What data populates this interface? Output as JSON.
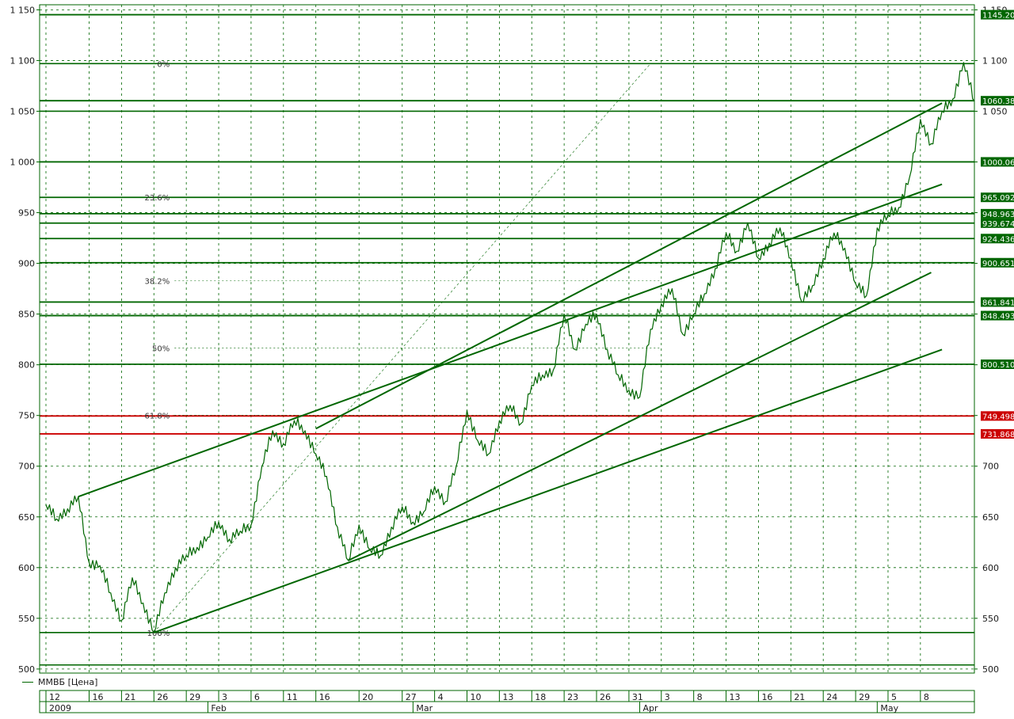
{
  "chart_data": {
    "type": "line",
    "series": [
      {
        "name": "ММВБ [Цена]",
        "color": "#006600",
        "points": [
          [
            "2009-01-12",
            662
          ],
          [
            "2009-01-13",
            648
          ],
          [
            "2009-01-14",
            658
          ],
          [
            "2009-01-15",
            670
          ],
          [
            "2009-01-16",
            605
          ],
          [
            "2009-01-19",
            602
          ],
          [
            "2009-01-20",
            575
          ],
          [
            "2009-01-21",
            548
          ],
          [
            "2009-01-22",
            590
          ],
          [
            "2009-01-23",
            565
          ],
          [
            "2009-01-26",
            536
          ],
          [
            "2009-01-27",
            575
          ],
          [
            "2009-01-28",
            600
          ],
          [
            "2009-01-29",
            612
          ],
          [
            "2009-01-30",
            620
          ],
          [
            "2009-02-02",
            630
          ],
          [
            "2009-02-03",
            645
          ],
          [
            "2009-02-04",
            628
          ],
          [
            "2009-02-05",
            636
          ],
          [
            "2009-02-06",
            642
          ],
          [
            "2009-02-09",
            700
          ],
          [
            "2009-02-10",
            735
          ],
          [
            "2009-02-11",
            722
          ],
          [
            "2009-02-12",
            745
          ],
          [
            "2009-02-13",
            735
          ],
          [
            "2009-02-16",
            712
          ],
          [
            "2009-02-17",
            690
          ],
          [
            "2009-02-18",
            640
          ],
          [
            "2009-02-19",
            607
          ],
          [
            "2009-02-20",
            642
          ],
          [
            "2009-02-24",
            618
          ],
          [
            "2009-02-25",
            612
          ],
          [
            "2009-02-26",
            640
          ],
          [
            "2009-02-27",
            660
          ],
          [
            "2009-03-02",
            645
          ],
          [
            "2009-03-03",
            655
          ],
          [
            "2009-03-04",
            680
          ],
          [
            "2009-03-05",
            665
          ],
          [
            "2009-03-06",
            700
          ],
          [
            "2009-03-10",
            755
          ],
          [
            "2009-03-11",
            725
          ],
          [
            "2009-03-12",
            712
          ],
          [
            "2009-03-13",
            745
          ],
          [
            "2009-03-16",
            760
          ],
          [
            "2009-03-17",
            742
          ],
          [
            "2009-03-18",
            780
          ],
          [
            "2009-03-19",
            790
          ],
          [
            "2009-03-20",
            795
          ],
          [
            "2009-03-23",
            850
          ],
          [
            "2009-03-24",
            815
          ],
          [
            "2009-03-25",
            840
          ],
          [
            "2009-03-26",
            850
          ],
          [
            "2009-03-27",
            815
          ],
          [
            "2009-03-30",
            790
          ],
          [
            "2009-03-31",
            775
          ],
          [
            "2009-04-01",
            768
          ],
          [
            "2009-04-02",
            835
          ],
          [
            "2009-04-03",
            860
          ],
          [
            "2009-04-06",
            875
          ],
          [
            "2009-04-07",
            830
          ],
          [
            "2009-04-08",
            850
          ],
          [
            "2009-04-09",
            870
          ],
          [
            "2009-04-10",
            895
          ],
          [
            "2009-04-13",
            930
          ],
          [
            "2009-04-14",
            912
          ],
          [
            "2009-04-15",
            940
          ],
          [
            "2009-04-16",
            905
          ],
          [
            "2009-04-17",
            920
          ],
          [
            "2009-04-20",
            935
          ],
          [
            "2009-04-21",
            905
          ],
          [
            "2009-04-22",
            862
          ],
          [
            "2009-04-23",
            878
          ],
          [
            "2009-04-24",
            905
          ],
          [
            "2009-04-27",
            930
          ],
          [
            "2009-04-28",
            915
          ],
          [
            "2009-04-29",
            880
          ],
          [
            "2009-04-30",
            868
          ],
          [
            "2009-05-04",
            935
          ],
          [
            "2009-05-05",
            948
          ],
          [
            "2009-05-06",
            955
          ],
          [
            "2009-05-07",
            985
          ],
          [
            "2009-05-08",
            1042
          ],
          [
            "2009-05-12",
            1018
          ],
          [
            "2009-05-13",
            1050
          ],
          [
            "2009-05-14",
            1062
          ],
          [
            "2009-05-15",
            1098
          ],
          [
            "2009-05-18",
            1060
          ]
        ]
      }
    ],
    "y_ticks": [
      "1 150",
      "1 100",
      "1 050",
      "1 000",
      "950",
      "900",
      "850",
      "800",
      "750",
      "700",
      "650",
      "600",
      "550",
      "500"
    ],
    "y_ticks_right": [
      "1 150",
      "1 100",
      "1 050",
      "1 000",
      "950",
      "900",
      "850",
      "800",
      "750",
      "700",
      "650",
      "600",
      "550",
      "500"
    ],
    "y_tick_values": [
      1150,
      1100,
      1050,
      1000,
      950,
      900,
      850,
      800,
      750,
      700,
      650,
      600,
      550,
      500
    ],
    "ylim": [
      496,
      1155
    ],
    "x_ticks": [
      {
        "label": "12",
        "date": "2009-01-12"
      },
      {
        "label": "16",
        "date": "2009-01-16"
      },
      {
        "label": "21",
        "date": "2009-01-21"
      },
      {
        "label": "26",
        "date": "2009-01-26"
      },
      {
        "label": "29",
        "date": "2009-01-29"
      },
      {
        "label": "3",
        "date": "2009-02-03"
      },
      {
        "label": "6",
        "date": "2009-02-06"
      },
      {
        "label": "11",
        "date": "2009-02-11"
      },
      {
        "label": "16",
        "date": "2009-02-16"
      },
      {
        "label": "20",
        "date": "2009-02-20"
      },
      {
        "label": "27",
        "date": "2009-02-27"
      },
      {
        "label": "4",
        "date": "2009-03-04"
      },
      {
        "label": "10",
        "date": "2009-03-10"
      },
      {
        "label": "13",
        "date": "2009-03-13"
      },
      {
        "label": "18",
        "date": "2009-03-18"
      },
      {
        "label": "23",
        "date": "2009-03-23"
      },
      {
        "label": "26",
        "date": "2009-03-26"
      },
      {
        "label": "31",
        "date": "2009-03-31"
      },
      {
        "label": "3",
        "date": "2009-04-03"
      },
      {
        "label": "8",
        "date": "2009-04-08"
      },
      {
        "label": "13",
        "date": "2009-04-13"
      },
      {
        "label": "16",
        "date": "2009-04-16"
      },
      {
        "label": "21",
        "date": "2009-04-21"
      },
      {
        "label": "24",
        "date": "2009-04-24"
      },
      {
        "label": "29",
        "date": "2009-04-29"
      },
      {
        "label": "5",
        "date": "2009-05-05"
      },
      {
        "label": "8",
        "date": "2009-05-08"
      }
    ],
    "month_labels": [
      {
        "label": "2009",
        "date": "2009-01-12"
      },
      {
        "label": "Feb",
        "date": "2009-02-02"
      },
      {
        "label": "Mar",
        "date": "2009-03-02"
      },
      {
        "label": "Apr",
        "date": "2009-04-01"
      },
      {
        "label": "May",
        "date": "2009-05-04"
      }
    ],
    "horizontal_levels": [
      {
        "value": 1145.2,
        "label": "1145.20",
        "color": "#006600"
      },
      {
        "value": 1060.38,
        "label": "1060.38",
        "color": "#006600"
      },
      {
        "value": 1000.06,
        "label": "1000.06",
        "color": "#006600"
      },
      {
        "value": 965.09,
        "label": "965.092",
        "color": "#006600"
      },
      {
        "value": 948.96,
        "label": "948.963",
        "color": "#006600"
      },
      {
        "value": 939.67,
        "label": "939.674",
        "color": "#006600"
      },
      {
        "value": 924.44,
        "label": "924.436",
        "color": "#006600"
      },
      {
        "value": 900.65,
        "label": "900.651",
        "color": "#006600"
      },
      {
        "value": 861.84,
        "label": "861.841",
        "color": "#006600"
      },
      {
        "value": 848.49,
        "label": "848.493",
        "color": "#006600"
      },
      {
        "value": 800.51,
        "label": "800.510",
        "color": "#006600"
      },
      {
        "value": 749.5,
        "label": "749.498",
        "color": "#cc0000"
      },
      {
        "value": 731.87,
        "label": "731.868",
        "color": "#cc0000"
      }
    ],
    "fibonacci": {
      "high": {
        "date": "2009-01-26",
        "value": 1097
      },
      "low": {
        "date": "2009-01-26",
        "value": 536
      },
      "levels": [
        {
          "label": "0%",
          "value": 1097
        },
        {
          "label": "23.6%",
          "value": 965.1
        },
        {
          "label": "38.2%",
          "value": 882.7
        },
        {
          "label": "50%",
          "value": 816.5
        },
        {
          "label": "61.8%",
          "value": 750.3
        },
        {
          "label": "100%",
          "value": 536
        }
      ]
    },
    "extra_levels": [
      {
        "value": 1097
      },
      {
        "value": 1050
      },
      {
        "value": 536
      },
      {
        "value": 504
      }
    ],
    "trend_lines": [
      {
        "from": [
          "2009-01-15",
          670
        ],
        "to": [
          "2009-05-13",
          978
        ]
      },
      {
        "from": [
          "2009-02-16",
          737
        ],
        "to": [
          "2009-05-13",
          1058
        ]
      },
      {
        "from": [
          "2009-01-26",
          536
        ],
        "to": [
          "2009-05-13",
          815
        ]
      },
      {
        "from": [
          "2009-02-19",
          607
        ],
        "to": [
          "2009-05-12",
          891
        ]
      }
    ],
    "fan_line": {
      "from": [
        "2009-01-26",
        536
      ],
      "to": [
        "2009-04-02",
        1097
      ]
    },
    "grid": true,
    "legend_position": "bottom-left"
  }
}
